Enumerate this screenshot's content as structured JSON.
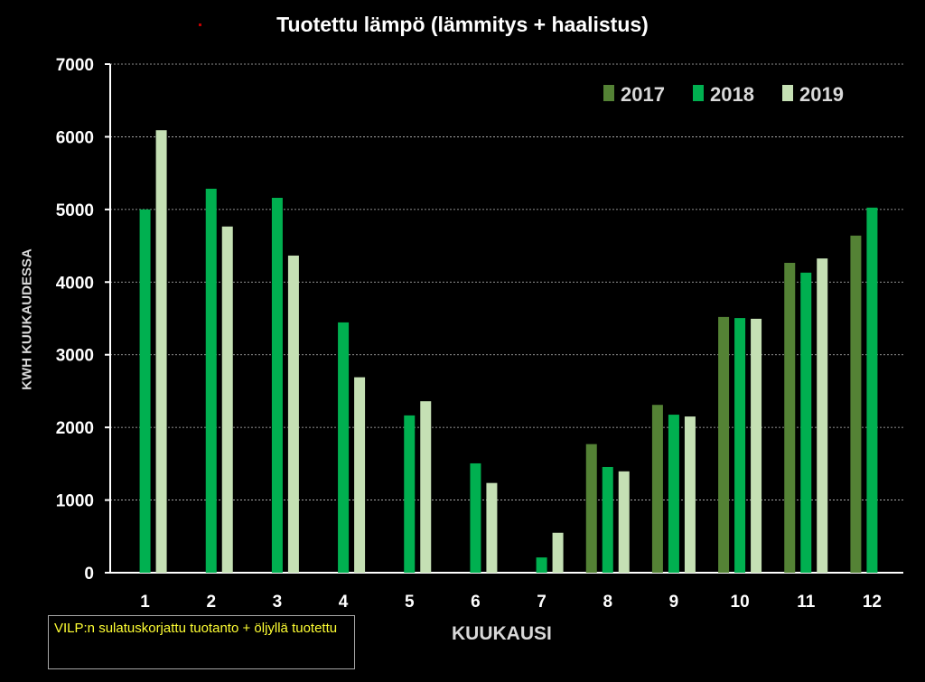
{
  "chart_data": {
    "type": "bar",
    "title": "Tuotettu lämpö (lämmitys + haalistus)",
    "xlabel": "KUUKAUSI",
    "ylabel": "KWH KUUKAUDESSA",
    "ylim": [
      0,
      7000
    ],
    "yticks": [
      "0",
      "1000",
      "2000",
      "3000",
      "4000",
      "5000",
      "6000",
      "7000"
    ],
    "grid": true,
    "legend": "top-right",
    "categories": [
      "1",
      "2",
      "3",
      "4",
      "5",
      "6",
      "7",
      "8",
      "9",
      "10",
      "11",
      "12"
    ],
    "series": [
      {
        "name": "2017",
        "color": "#548235",
        "values": [
          null,
          null,
          null,
          null,
          null,
          null,
          null,
          1770,
          2310,
          3520,
          4265,
          4640
        ]
      },
      {
        "name": "2018",
        "color": "#00b050",
        "values": [
          5000,
          5285,
          5160,
          3445,
          2165,
          1505,
          210,
          1455,
          2175,
          3505,
          4130,
          5025
        ]
      },
      {
        "name": "2019",
        "color": "#c5e0b4",
        "values": [
          6090,
          4765,
          4365,
          2690,
          2360,
          1235,
          550,
          1395,
          2150,
          3495,
          4325,
          null
        ]
      }
    ],
    "annotation": "VILP:n sulatuskorjattu tuotanto + öljyllä tuotettu"
  }
}
